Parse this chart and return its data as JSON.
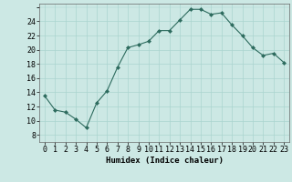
{
  "x": [
    0,
    1,
    2,
    3,
    4,
    5,
    6,
    7,
    8,
    9,
    10,
    11,
    12,
    13,
    14,
    15,
    16,
    17,
    18,
    19,
    20,
    21,
    22,
    23
  ],
  "y": [
    13.5,
    11.5,
    11.2,
    10.2,
    9.0,
    12.5,
    14.2,
    17.5,
    20.3,
    20.7,
    21.2,
    22.7,
    22.7,
    24.2,
    25.7,
    25.7,
    25.0,
    25.2,
    23.5,
    22.0,
    20.3,
    19.2,
    19.5,
    18.2
  ],
  "line_color": "#2d6b5e",
  "marker": "D",
  "marker_size": 2.0,
  "bg_color": "#cce8e4",
  "grid_color": "#aad4cf",
  "xlabel": "Humidex (Indice chaleur)",
  "xlim": [
    -0.5,
    23.5
  ],
  "ylim": [
    7,
    26.5
  ],
  "yticks": [
    8,
    10,
    12,
    14,
    16,
    18,
    20,
    22,
    24
  ],
  "xticks": [
    0,
    1,
    2,
    3,
    4,
    5,
    6,
    7,
    8,
    9,
    10,
    11,
    12,
    13,
    14,
    15,
    16,
    17,
    18,
    19,
    20,
    21,
    22,
    23
  ],
  "label_fontsize": 6.5,
  "tick_fontsize": 6.0
}
